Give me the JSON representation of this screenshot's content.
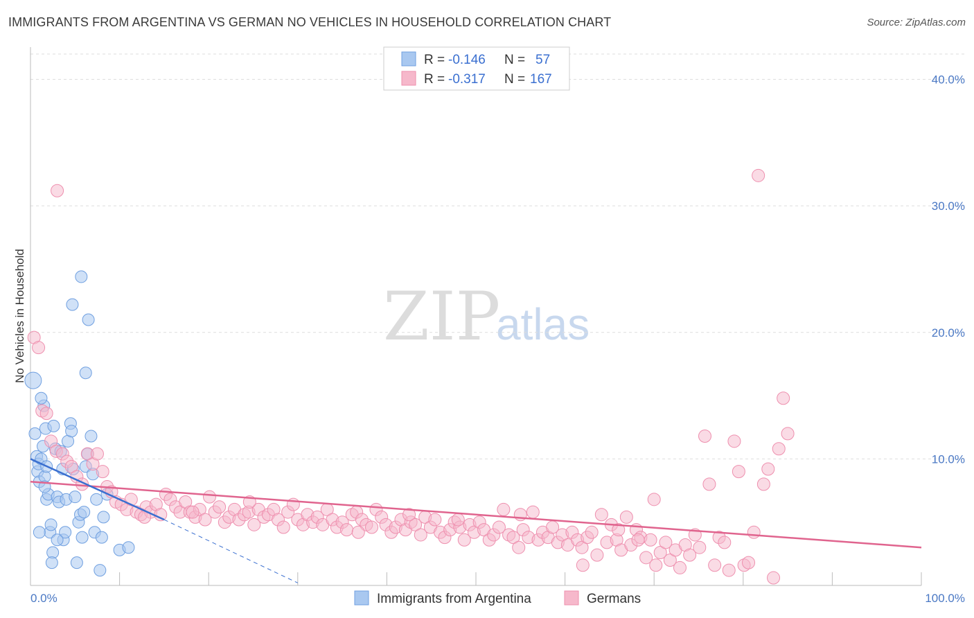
{
  "title": "IMMIGRANTS FROM ARGENTINA VS GERMAN NO VEHICLES IN HOUSEHOLD CORRELATION CHART",
  "source": "Source: ZipAtlas.com",
  "watermark": {
    "zip": "ZIP",
    "atlas": "atlas"
  },
  "colors": {
    "blue_fill": "#a9c8f0",
    "blue_stroke": "#6f9fe0",
    "blue_line": "#3a6fd0",
    "pink_fill": "#f6b8cb",
    "pink_stroke": "#ee8fae",
    "pink_line": "#e0648e",
    "grid": "#dddddd",
    "tick_text": "#4a78c4"
  },
  "legend": {
    "rows": [
      {
        "r_label": "R =",
        "r_value": "-0.146",
        "n_label": "N =",
        "n_value": "57"
      },
      {
        "r_label": "R =",
        "r_value": "-0.317",
        "n_label": "N =",
        "n_value": "167"
      }
    ]
  },
  "chart_data": {
    "type": "scatter",
    "title": "IMMIGRANTS FROM ARGENTINA VS GERMAN NO VEHICLES IN HOUSEHOLD CORRELATION CHART",
    "xlabel": "",
    "ylabel": "No Vehicles in Household",
    "xlim": [
      0,
      100
    ],
    "ylim": [
      0,
      42
    ],
    "x_tick_labels": [
      "0.0%",
      "100.0%"
    ],
    "y_ticks": [
      10,
      20,
      30,
      40
    ],
    "y_tick_labels": [
      "10.0%",
      "20.0%",
      "30.0%",
      "40.0%"
    ],
    "legend_position": "bottom-center",
    "series": [
      {
        "name": "Immigrants from Argentina",
        "color": "#a9c8f0",
        "trend": {
          "x0": 0,
          "y0": 10.0,
          "x1": 15,
          "y1": 5.2,
          "dashed_to_x": 30,
          "dashed_to_y": 0.2
        },
        "points": [
          [
            0.3,
            16.2
          ],
          [
            0.5,
            12.0
          ],
          [
            0.7,
            10.2
          ],
          [
            0.8,
            9.0
          ],
          [
            1.0,
            8.2
          ],
          [
            0.9,
            9.6
          ],
          [
            1.2,
            10.0
          ],
          [
            1.4,
            11.0
          ],
          [
            1.5,
            14.2
          ],
          [
            1.2,
            14.8
          ],
          [
            1.8,
            6.8
          ],
          [
            1.6,
            8.6
          ],
          [
            2.0,
            7.2
          ],
          [
            1.8,
            9.4
          ],
          [
            1.7,
            12.4
          ],
          [
            2.2,
            4.2
          ],
          [
            2.5,
            2.6
          ],
          [
            2.4,
            1.8
          ],
          [
            2.8,
            10.8
          ],
          [
            2.6,
            12.6
          ],
          [
            3.0,
            7.0
          ],
          [
            3.2,
            6.6
          ],
          [
            3.6,
            9.2
          ],
          [
            3.4,
            10.6
          ],
          [
            3.7,
            3.6
          ],
          [
            3.9,
            4.2
          ],
          [
            4.0,
            6.8
          ],
          [
            4.2,
            11.4
          ],
          [
            4.5,
            12.8
          ],
          [
            4.6,
            12.2
          ],
          [
            4.8,
            9.2
          ],
          [
            5.0,
            7.0
          ],
          [
            5.2,
            1.8
          ],
          [
            5.4,
            5.0
          ],
          [
            5.6,
            5.6
          ],
          [
            5.8,
            3.8
          ],
          [
            6.0,
            5.8
          ],
          [
            6.2,
            9.4
          ],
          [
            6.4,
            10.4
          ],
          [
            6.8,
            11.8
          ],
          [
            7.0,
            8.8
          ],
          [
            7.2,
            4.2
          ],
          [
            7.4,
            6.8
          ],
          [
            7.8,
            1.2
          ],
          [
            8.0,
            3.8
          ],
          [
            8.2,
            5.4
          ],
          [
            8.6,
            7.2
          ],
          [
            6.5,
            21.0
          ],
          [
            4.7,
            22.2
          ],
          [
            5.7,
            24.4
          ],
          [
            6.2,
            16.8
          ],
          [
            1.6,
            7.8
          ],
          [
            2.3,
            4.8
          ],
          [
            3.0,
            3.6
          ],
          [
            10.0,
            2.8
          ],
          [
            11.0,
            3.0
          ],
          [
            1.0,
            4.2
          ]
        ]
      },
      {
        "name": "Germans",
        "color": "#f6b8cb",
        "trend": {
          "x0": 0,
          "y0": 8.2,
          "x1": 100,
          "y1": 3.0
        },
        "points": [
          [
            0.4,
            19.6
          ],
          [
            0.9,
            18.8
          ],
          [
            3.0,
            31.2
          ],
          [
            1.3,
            13.8
          ],
          [
            1.8,
            13.6
          ],
          [
            2.3,
            11.4
          ],
          [
            2.9,
            10.6
          ],
          [
            3.6,
            10.4
          ],
          [
            4.1,
            9.8
          ],
          [
            4.6,
            9.4
          ],
          [
            5.2,
            8.6
          ],
          [
            5.8,
            8.0
          ],
          [
            6.4,
            10.4
          ],
          [
            7.0,
            9.6
          ],
          [
            7.5,
            10.4
          ],
          [
            8.1,
            9.0
          ],
          [
            8.6,
            7.8
          ],
          [
            9.1,
            7.4
          ],
          [
            9.6,
            6.6
          ],
          [
            10.2,
            6.4
          ],
          [
            10.8,
            6.0
          ],
          [
            11.3,
            6.8
          ],
          [
            11.9,
            5.8
          ],
          [
            12.4,
            5.6
          ],
          [
            13.0,
            6.2
          ],
          [
            13.5,
            5.8
          ],
          [
            14.1,
            6.4
          ],
          [
            14.6,
            5.6
          ],
          [
            15.2,
            7.2
          ],
          [
            15.7,
            6.8
          ],
          [
            16.3,
            6.2
          ],
          [
            16.8,
            5.8
          ],
          [
            17.4,
            6.6
          ],
          [
            17.9,
            5.8
          ],
          [
            18.5,
            5.4
          ],
          [
            19.0,
            6.0
          ],
          [
            19.6,
            5.2
          ],
          [
            20.1,
            7.0
          ],
          [
            20.7,
            5.8
          ],
          [
            21.2,
            6.2
          ],
          [
            21.8,
            5.0
          ],
          [
            22.3,
            5.4
          ],
          [
            22.9,
            6.0
          ],
          [
            23.4,
            5.2
          ],
          [
            24.0,
            5.6
          ],
          [
            24.5,
            5.8
          ],
          [
            25.1,
            4.8
          ],
          [
            25.6,
            6.0
          ],
          [
            26.2,
            5.4
          ],
          [
            26.7,
            5.6
          ],
          [
            27.3,
            6.0
          ],
          [
            27.8,
            5.2
          ],
          [
            28.4,
            4.6
          ],
          [
            28.9,
            5.8
          ],
          [
            29.5,
            6.4
          ],
          [
            30.0,
            5.2
          ],
          [
            30.6,
            4.8
          ],
          [
            31.1,
            5.6
          ],
          [
            31.7,
            5.0
          ],
          [
            32.2,
            5.4
          ],
          [
            32.8,
            4.8
          ],
          [
            33.3,
            6.0
          ],
          [
            33.9,
            5.2
          ],
          [
            34.4,
            4.6
          ],
          [
            35.0,
            5.0
          ],
          [
            35.5,
            4.4
          ],
          [
            36.1,
            5.6
          ],
          [
            36.6,
            5.8
          ],
          [
            37.2,
            5.2
          ],
          [
            37.7,
            4.8
          ],
          [
            38.3,
            4.6
          ],
          [
            38.8,
            6.0
          ],
          [
            39.4,
            5.4
          ],
          [
            39.9,
            4.8
          ],
          [
            40.5,
            4.2
          ],
          [
            41.0,
            4.6
          ],
          [
            41.6,
            5.2
          ],
          [
            42.1,
            4.4
          ],
          [
            42.7,
            5.0
          ],
          [
            43.2,
            4.8
          ],
          [
            43.8,
            4.0
          ],
          [
            44.3,
            5.4
          ],
          [
            44.9,
            4.6
          ],
          [
            45.4,
            5.2
          ],
          [
            46.0,
            4.2
          ],
          [
            46.5,
            3.8
          ],
          [
            47.1,
            4.4
          ],
          [
            47.6,
            5.0
          ],
          [
            48.2,
            4.6
          ],
          [
            48.7,
            3.6
          ],
          [
            49.3,
            4.8
          ],
          [
            49.8,
            4.2
          ],
          [
            50.4,
            5.0
          ],
          [
            50.9,
            4.4
          ],
          [
            51.5,
            3.6
          ],
          [
            52.0,
            4.0
          ],
          [
            52.6,
            4.6
          ],
          [
            53.1,
            6.0
          ],
          [
            53.7,
            4.0
          ],
          [
            54.2,
            3.8
          ],
          [
            54.8,
            3.0
          ],
          [
            55.3,
            4.4
          ],
          [
            55.9,
            3.8
          ],
          [
            56.4,
            5.8
          ],
          [
            57.0,
            3.6
          ],
          [
            57.5,
            4.2
          ],
          [
            58.1,
            3.8
          ],
          [
            58.6,
            4.6
          ],
          [
            59.2,
            3.4
          ],
          [
            59.7,
            4.0
          ],
          [
            60.3,
            3.2
          ],
          [
            60.8,
            4.2
          ],
          [
            61.4,
            3.6
          ],
          [
            61.9,
            3.0
          ],
          [
            62.5,
            3.8
          ],
          [
            63.0,
            4.2
          ],
          [
            63.6,
            2.4
          ],
          [
            64.1,
            5.6
          ],
          [
            64.7,
            3.4
          ],
          [
            65.2,
            4.8
          ],
          [
            65.8,
            3.6
          ],
          [
            66.3,
            2.8
          ],
          [
            66.9,
            5.4
          ],
          [
            67.4,
            3.2
          ],
          [
            68.0,
            4.4
          ],
          [
            68.5,
            3.8
          ],
          [
            69.1,
            2.2
          ],
          [
            69.6,
            3.6
          ],
          [
            70.2,
            1.6
          ],
          [
            70.7,
            2.6
          ],
          [
            71.3,
            3.4
          ],
          [
            71.8,
            2.0
          ],
          [
            72.4,
            2.8
          ],
          [
            72.9,
            1.4
          ],
          [
            73.5,
            3.2
          ],
          [
            74.0,
            2.4
          ],
          [
            74.6,
            4.0
          ],
          [
            75.1,
            3.0
          ],
          [
            75.7,
            11.8
          ],
          [
            76.2,
            8.0
          ],
          [
            76.8,
            1.6
          ],
          [
            77.3,
            3.8
          ],
          [
            77.9,
            3.4
          ],
          [
            78.4,
            1.2
          ],
          [
            79.0,
            11.4
          ],
          [
            79.5,
            9.0
          ],
          [
            80.1,
            1.6
          ],
          [
            80.6,
            1.8
          ],
          [
            81.2,
            4.2
          ],
          [
            81.7,
            32.4
          ],
          [
            82.3,
            8.0
          ],
          [
            82.8,
            9.2
          ],
          [
            83.4,
            0.6
          ],
          [
            84.0,
            10.8
          ],
          [
            84.5,
            14.8
          ],
          [
            85.0,
            12.0
          ],
          [
            70.0,
            6.8
          ],
          [
            66.0,
            4.4
          ],
          [
            68.2,
            3.6
          ],
          [
            62.0,
            1.6
          ],
          [
            55.0,
            5.6
          ],
          [
            48.0,
            5.2
          ],
          [
            42.5,
            5.6
          ],
          [
            36.8,
            4.2
          ],
          [
            24.6,
            6.6
          ],
          [
            18.2,
            5.8
          ],
          [
            12.8,
            5.4
          ]
        ]
      }
    ]
  }
}
